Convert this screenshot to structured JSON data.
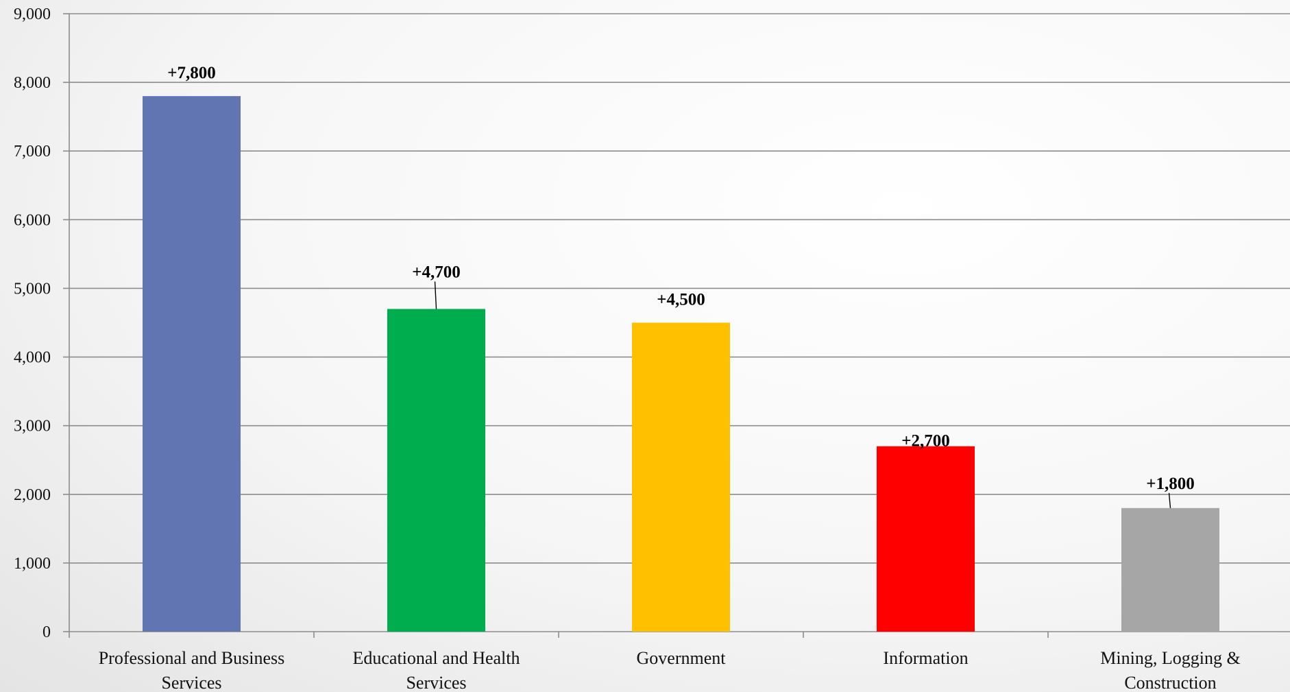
{
  "chart_data": {
    "type": "bar",
    "title": "",
    "xlabel": "",
    "ylabel": "",
    "categories": [
      [
        "Professional and Business",
        "Services"
      ],
      [
        "Educational and Health",
        "Services"
      ],
      [
        "Government"
      ],
      [
        "Information"
      ],
      [
        "Mining, Logging &",
        "Construction"
      ]
    ],
    "values": [
      7800,
      4700,
      4500,
      2700,
      1800
    ],
    "data_labels": [
      "+7,800",
      "+4,700",
      "+4,500",
      "+2,700",
      "+1,800"
    ],
    "colors": [
      "#6175b3",
      "#00ad4e",
      "#ffc000",
      "#ff0000",
      "#a6a6a6"
    ],
    "ylim": [
      0,
      9000
    ],
    "y_ticks": [
      0,
      1000,
      2000,
      3000,
      4000,
      5000,
      6000,
      7000,
      8000,
      9000
    ],
    "y_tick_labels": [
      "0",
      "1,000",
      "2,000",
      "3,000",
      "4,000",
      "5,000",
      "6,000",
      "7,000",
      "8,000",
      "9,000"
    ],
    "grid": true,
    "legend": "none"
  }
}
